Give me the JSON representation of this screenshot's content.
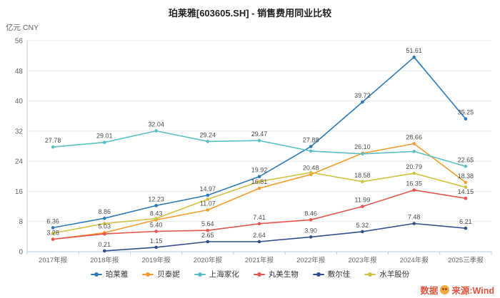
{
  "chart_data": {
    "type": "line",
    "title": "珀莱雅[603605.SH] - 销售费用同业比较",
    "unit_label": "亿元 CNY",
    "categories": [
      "2017年报",
      "2018年报",
      "2019年报",
      "2020年报",
      "2021年报",
      "2022年报",
      "2023年报",
      "2024年报",
      "2025三季报"
    ],
    "ylim": [
      0,
      56
    ],
    "yticks": [
      0,
      8,
      16,
      24,
      32,
      40,
      48,
      56
    ],
    "grid": true,
    "legend_position": "bottom",
    "series": [
      {
        "name": "珀莱雅",
        "color": "#2b7bba",
        "values": [
          6.36,
          8.86,
          12.23,
          14.97,
          19.92,
          27.88,
          39.72,
          51.61,
          35.25
        ],
        "labels": [
          "6.36",
          "8.86",
          "12.23",
          "14.97",
          "19.92",
          "27.88",
          "39.72",
          "51.61",
          "35.25"
        ]
      },
      {
        "name": "贝泰妮",
        "color": "#f39b2c",
        "values": [
          3.28,
          5.03,
          8.43,
          11.07,
          16.81,
          20.48,
          26.1,
          28.66,
          18.38
        ],
        "labels": [
          "3.28",
          "5.03",
          "8.43",
          "11.07",
          "16.81",
          "20.48",
          "26.10",
          "28.66",
          "18.38"
        ]
      },
      {
        "name": "上海家化",
        "color": "#5bc0c6",
        "values": [
          27.78,
          29.01,
          32.04,
          29.24,
          29.47,
          26.7,
          25.95,
          26.6,
          22.65
        ],
        "labels": [
          "27.78",
          "29.01",
          "32.04",
          "29.24",
          "29.47",
          null,
          null,
          null,
          "22.65"
        ]
      },
      {
        "name": "丸美生物",
        "color": "#e4564e",
        "values": [
          3.31,
          4.72,
          5.4,
          5.64,
          7.41,
          8.46,
          11.99,
          16.35,
          14.15
        ],
        "labels": [
          null,
          null,
          "5.40",
          "5.64",
          "7.41",
          "8.46",
          "11.99",
          "16.35",
          "14.15"
        ]
      },
      {
        "name": "敷尔佳",
        "color": "#31508d",
        "values": [
          null,
          0.21,
          1.15,
          2.65,
          2.64,
          3.9,
          5.32,
          7.48,
          6.21
        ],
        "labels": [
          null,
          "0.21",
          "1.15",
          "2.65",
          "2.64",
          "3.90",
          "5.32",
          "7.48",
          "6.21"
        ]
      },
      {
        "name": "水羊股份",
        "color": "#d3c13f",
        "values": [
          4.9,
          7.45,
          8.8,
          13.9,
          18.6,
          21.0,
          18.58,
          20.79,
          17.1
        ],
        "labels": [
          null,
          null,
          null,
          null,
          null,
          null,
          "18.58",
          "20.79",
          null
        ]
      }
    ]
  },
  "watermark": {
    "text_left": "数据",
    "text_right": "来源:Wind",
    "icon": "mascot-icon",
    "color": "#e2543b"
  }
}
